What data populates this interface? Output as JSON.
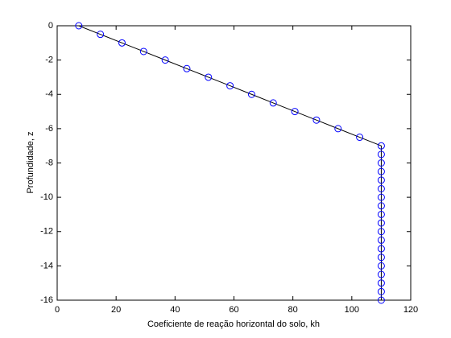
{
  "chart_data": {
    "type": "line",
    "x_label": "Coeficiente de reação horizontal do solo, kh",
    "y_label": "Profundidade, z",
    "series": [
      {
        "color": "#000000",
        "marker_color": "#0000ff",
        "x": [
          7.33,
          14.67,
          22,
          29.33,
          36.67,
          44,
          51.33,
          58.67,
          66,
          73.33,
          80.67,
          88,
          95.33,
          102.67,
          110,
          110,
          110,
          110,
          110,
          110,
          110,
          110,
          110,
          110,
          110,
          110,
          110,
          110,
          110,
          110,
          110,
          110,
          110
        ],
        "values": [
          0,
          -0.5,
          -1,
          -1.5,
          -2,
          -2.5,
          -3,
          -3.5,
          -4,
          -4.5,
          -5,
          -5.5,
          -6,
          -6.5,
          -7,
          -7.5,
          -8,
          -8.5,
          -9,
          -9.5,
          -10,
          -10.5,
          -11,
          -11.5,
          -12,
          -12.5,
          -13,
          -13.5,
          -14,
          -14.5,
          -15,
          -15.5,
          -16
        ]
      }
    ],
    "xlim": [
      0,
      120
    ],
    "xticks": [
      0,
      20,
      40,
      60,
      80,
      100,
      120
    ],
    "ylim": [
      -16,
      0
    ],
    "yticks": [
      0,
      -2,
      -4,
      -6,
      -8,
      -10,
      -12,
      -14,
      -16
    ],
    "grid": false
  }
}
